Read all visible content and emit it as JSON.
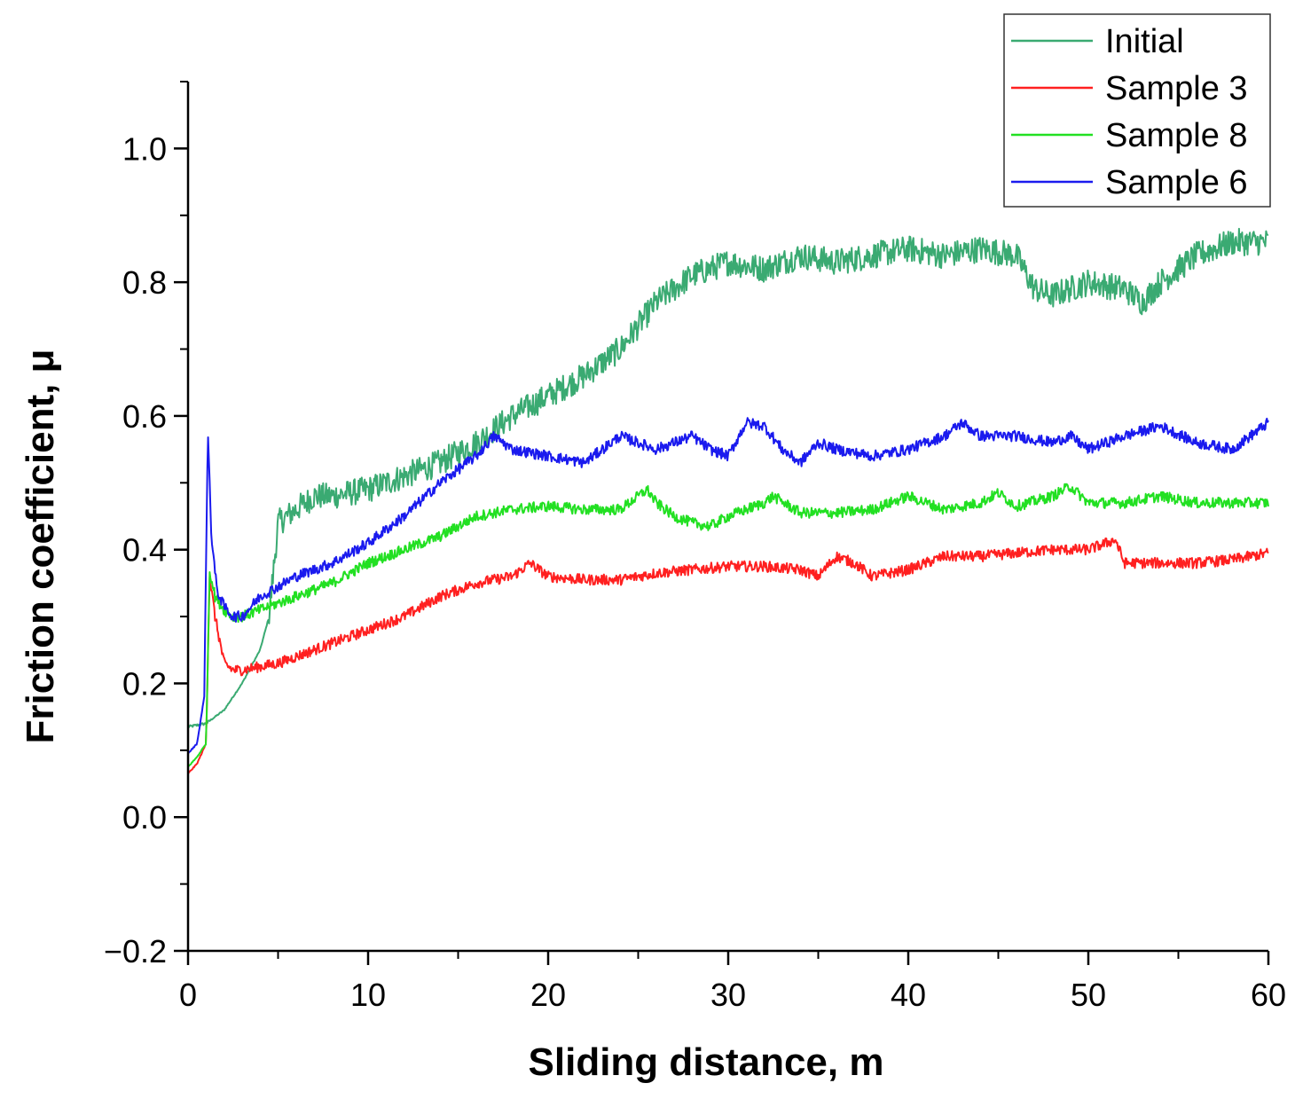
{
  "chart_data": {
    "type": "line",
    "title": "",
    "xlabel": "Sliding distance, m",
    "ylabel": "Friction coefficient, μ",
    "xlim": [
      0,
      60
    ],
    "ylim": [
      -0.2,
      1.1
    ],
    "x_ticks": [
      0,
      10,
      20,
      30,
      40,
      50,
      60
    ],
    "x_tick_labels": [
      "0",
      "10",
      "20",
      "30",
      "40",
      "50",
      "60"
    ],
    "y_ticks": [
      -0.2,
      0.0,
      0.2,
      0.4,
      0.6,
      0.8,
      1.0
    ],
    "y_tick_labels": [
      "−0.2",
      "0.0",
      "0.2",
      "0.4",
      "0.6",
      "0.8",
      "1.0"
    ],
    "legend_position": "top-right",
    "grid": false,
    "series": [
      {
        "name": "Initial",
        "color": "#3aaa72",
        "noise": 0.02,
        "x": [
          0,
          1,
          2,
          3,
          4,
          4.5,
          5,
          5.5,
          6,
          7,
          8,
          10,
          12,
          14,
          16,
          18,
          20,
          22,
          24,
          26,
          28,
          30,
          32,
          34,
          36,
          38,
          40,
          42,
          44,
          46,
          47,
          48,
          50,
          52,
          53,
          54,
          56,
          58,
          60
        ],
        "y": [
          0.135,
          0.14,
          0.16,
          0.2,
          0.25,
          0.3,
          0.44,
          0.45,
          0.46,
          0.48,
          0.48,
          0.49,
          0.51,
          0.53,
          0.56,
          0.6,
          0.63,
          0.66,
          0.7,
          0.77,
          0.81,
          0.83,
          0.82,
          0.84,
          0.83,
          0.84,
          0.85,
          0.84,
          0.85,
          0.84,
          0.79,
          0.78,
          0.8,
          0.79,
          0.77,
          0.8,
          0.84,
          0.86,
          0.86
        ]
      },
      {
        "name": "Sample 3",
        "color": "#ff2020",
        "noise": 0.008,
        "x": [
          0,
          0.5,
          1,
          1.2,
          1.5,
          2,
          2.5,
          3,
          4,
          5,
          6,
          8,
          10,
          12,
          14,
          16,
          18,
          19,
          20,
          22,
          24,
          26,
          28,
          30,
          32,
          34,
          35,
          36,
          37,
          38,
          40,
          42,
          44,
          46,
          48,
          50,
          51.5,
          52,
          54,
          56,
          58,
          60
        ],
        "y": [
          0.065,
          0.08,
          0.11,
          0.36,
          0.3,
          0.23,
          0.22,
          0.22,
          0.225,
          0.23,
          0.24,
          0.26,
          0.28,
          0.3,
          0.33,
          0.35,
          0.36,
          0.38,
          0.36,
          0.355,
          0.355,
          0.365,
          0.37,
          0.375,
          0.375,
          0.37,
          0.36,
          0.39,
          0.38,
          0.36,
          0.37,
          0.39,
          0.39,
          0.395,
          0.4,
          0.4,
          0.415,
          0.38,
          0.38,
          0.38,
          0.385,
          0.395
        ]
      },
      {
        "name": "Sample 8",
        "color": "#22e022",
        "noise": 0.008,
        "x": [
          0,
          0.5,
          1,
          1.2,
          1.5,
          2,
          2.5,
          3,
          4,
          6,
          8,
          10,
          12,
          14,
          16,
          18,
          20,
          22,
          24,
          25.5,
          26,
          27,
          28,
          29,
          30,
          32,
          32.5,
          34,
          36,
          38,
          40,
          42,
          44,
          45,
          46,
          48,
          49,
          50,
          52,
          54,
          56,
          58,
          60
        ],
        "y": [
          0.075,
          0.09,
          0.11,
          0.37,
          0.33,
          0.31,
          0.3,
          0.3,
          0.31,
          0.33,
          0.35,
          0.38,
          0.4,
          0.42,
          0.45,
          0.46,
          0.465,
          0.46,
          0.46,
          0.49,
          0.47,
          0.45,
          0.44,
          0.435,
          0.45,
          0.47,
          0.48,
          0.455,
          0.455,
          0.46,
          0.48,
          0.46,
          0.47,
          0.485,
          0.465,
          0.48,
          0.495,
          0.47,
          0.47,
          0.48,
          0.47,
          0.47,
          0.47
        ]
      },
      {
        "name": "Sample 6",
        "color": "#1a1aee",
        "noise": 0.008,
        "x": [
          0,
          0.5,
          0.9,
          1.1,
          1.3,
          1.6,
          2,
          2.5,
          3,
          4,
          6,
          8,
          10,
          12,
          14,
          16,
          17,
          18,
          20,
          22,
          24,
          26,
          27,
          28,
          29,
          30,
          31,
          32,
          33,
          34,
          35,
          36,
          38,
          40,
          42,
          43,
          44,
          46,
          48,
          49,
          50,
          52,
          54,
          56,
          58,
          60
        ],
        "y": [
          0.095,
          0.11,
          0.18,
          0.58,
          0.42,
          0.34,
          0.315,
          0.3,
          0.3,
          0.33,
          0.36,
          0.38,
          0.41,
          0.45,
          0.5,
          0.54,
          0.57,
          0.55,
          0.54,
          0.53,
          0.57,
          0.55,
          0.56,
          0.57,
          0.55,
          0.54,
          0.59,
          0.585,
          0.55,
          0.53,
          0.56,
          0.55,
          0.54,
          0.55,
          0.57,
          0.59,
          0.57,
          0.57,
          0.56,
          0.57,
          0.55,
          0.57,
          0.585,
          0.56,
          0.55,
          0.59
        ]
      }
    ]
  }
}
